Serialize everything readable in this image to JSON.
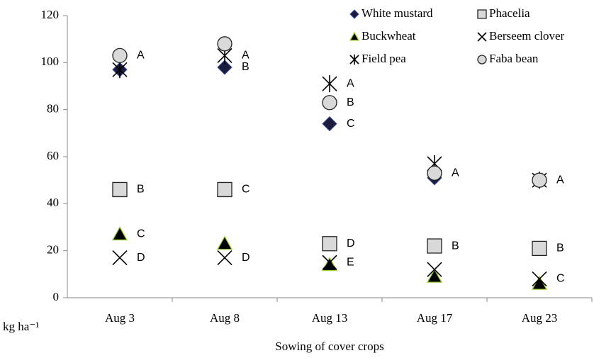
{
  "chart_data": {
    "type": "scatter",
    "x_label": "Sowing of cover crops",
    "y_label": "kg ha⁻¹",
    "categories": [
      "Aug 3",
      "Aug 8",
      "Aug 13",
      "Aug 17",
      "Aug 23"
    ],
    "ylim": [
      0,
      120
    ],
    "yticks": [
      0,
      20,
      40,
      60,
      80,
      100,
      120
    ],
    "series": [
      {
        "name": "White mustard",
        "marker": "diamond",
        "color": "#1c1c3c",
        "values": [
          97,
          98,
          74,
          51,
          50
        ],
        "letters": [
          null,
          "B",
          "C",
          null,
          null
        ]
      },
      {
        "name": "Phacelia",
        "marker": "square",
        "color": "#d9d9d9",
        "values": [
          46,
          46,
          23,
          22,
          21
        ],
        "letters": [
          "B",
          "C",
          "D",
          "B",
          "B"
        ]
      },
      {
        "name": "Buckwheat",
        "marker": "triangle",
        "color": "#000000",
        "values": [
          27,
          23,
          14,
          9,
          6
        ],
        "letters": [
          "C",
          null,
          null,
          null,
          null
        ]
      },
      {
        "name": "Berseem clover",
        "marker": "x",
        "color": "#000000",
        "values": [
          17,
          17,
          15,
          12,
          8
        ],
        "letters": [
          "D",
          "D",
          "E",
          null,
          "C"
        ]
      },
      {
        "name": "Field pea",
        "marker": "asterisk",
        "color": "#000000",
        "values": [
          97,
          103,
          91,
          57,
          50
        ],
        "letters": [
          null,
          "A",
          "A",
          null,
          null
        ]
      },
      {
        "name": "Faba bean",
        "marker": "circle",
        "color": "#d9d9d9",
        "values": [
          103,
          108,
          83,
          53,
          50
        ],
        "letters": [
          "A",
          null,
          "B",
          "A",
          "A"
        ]
      }
    ]
  }
}
